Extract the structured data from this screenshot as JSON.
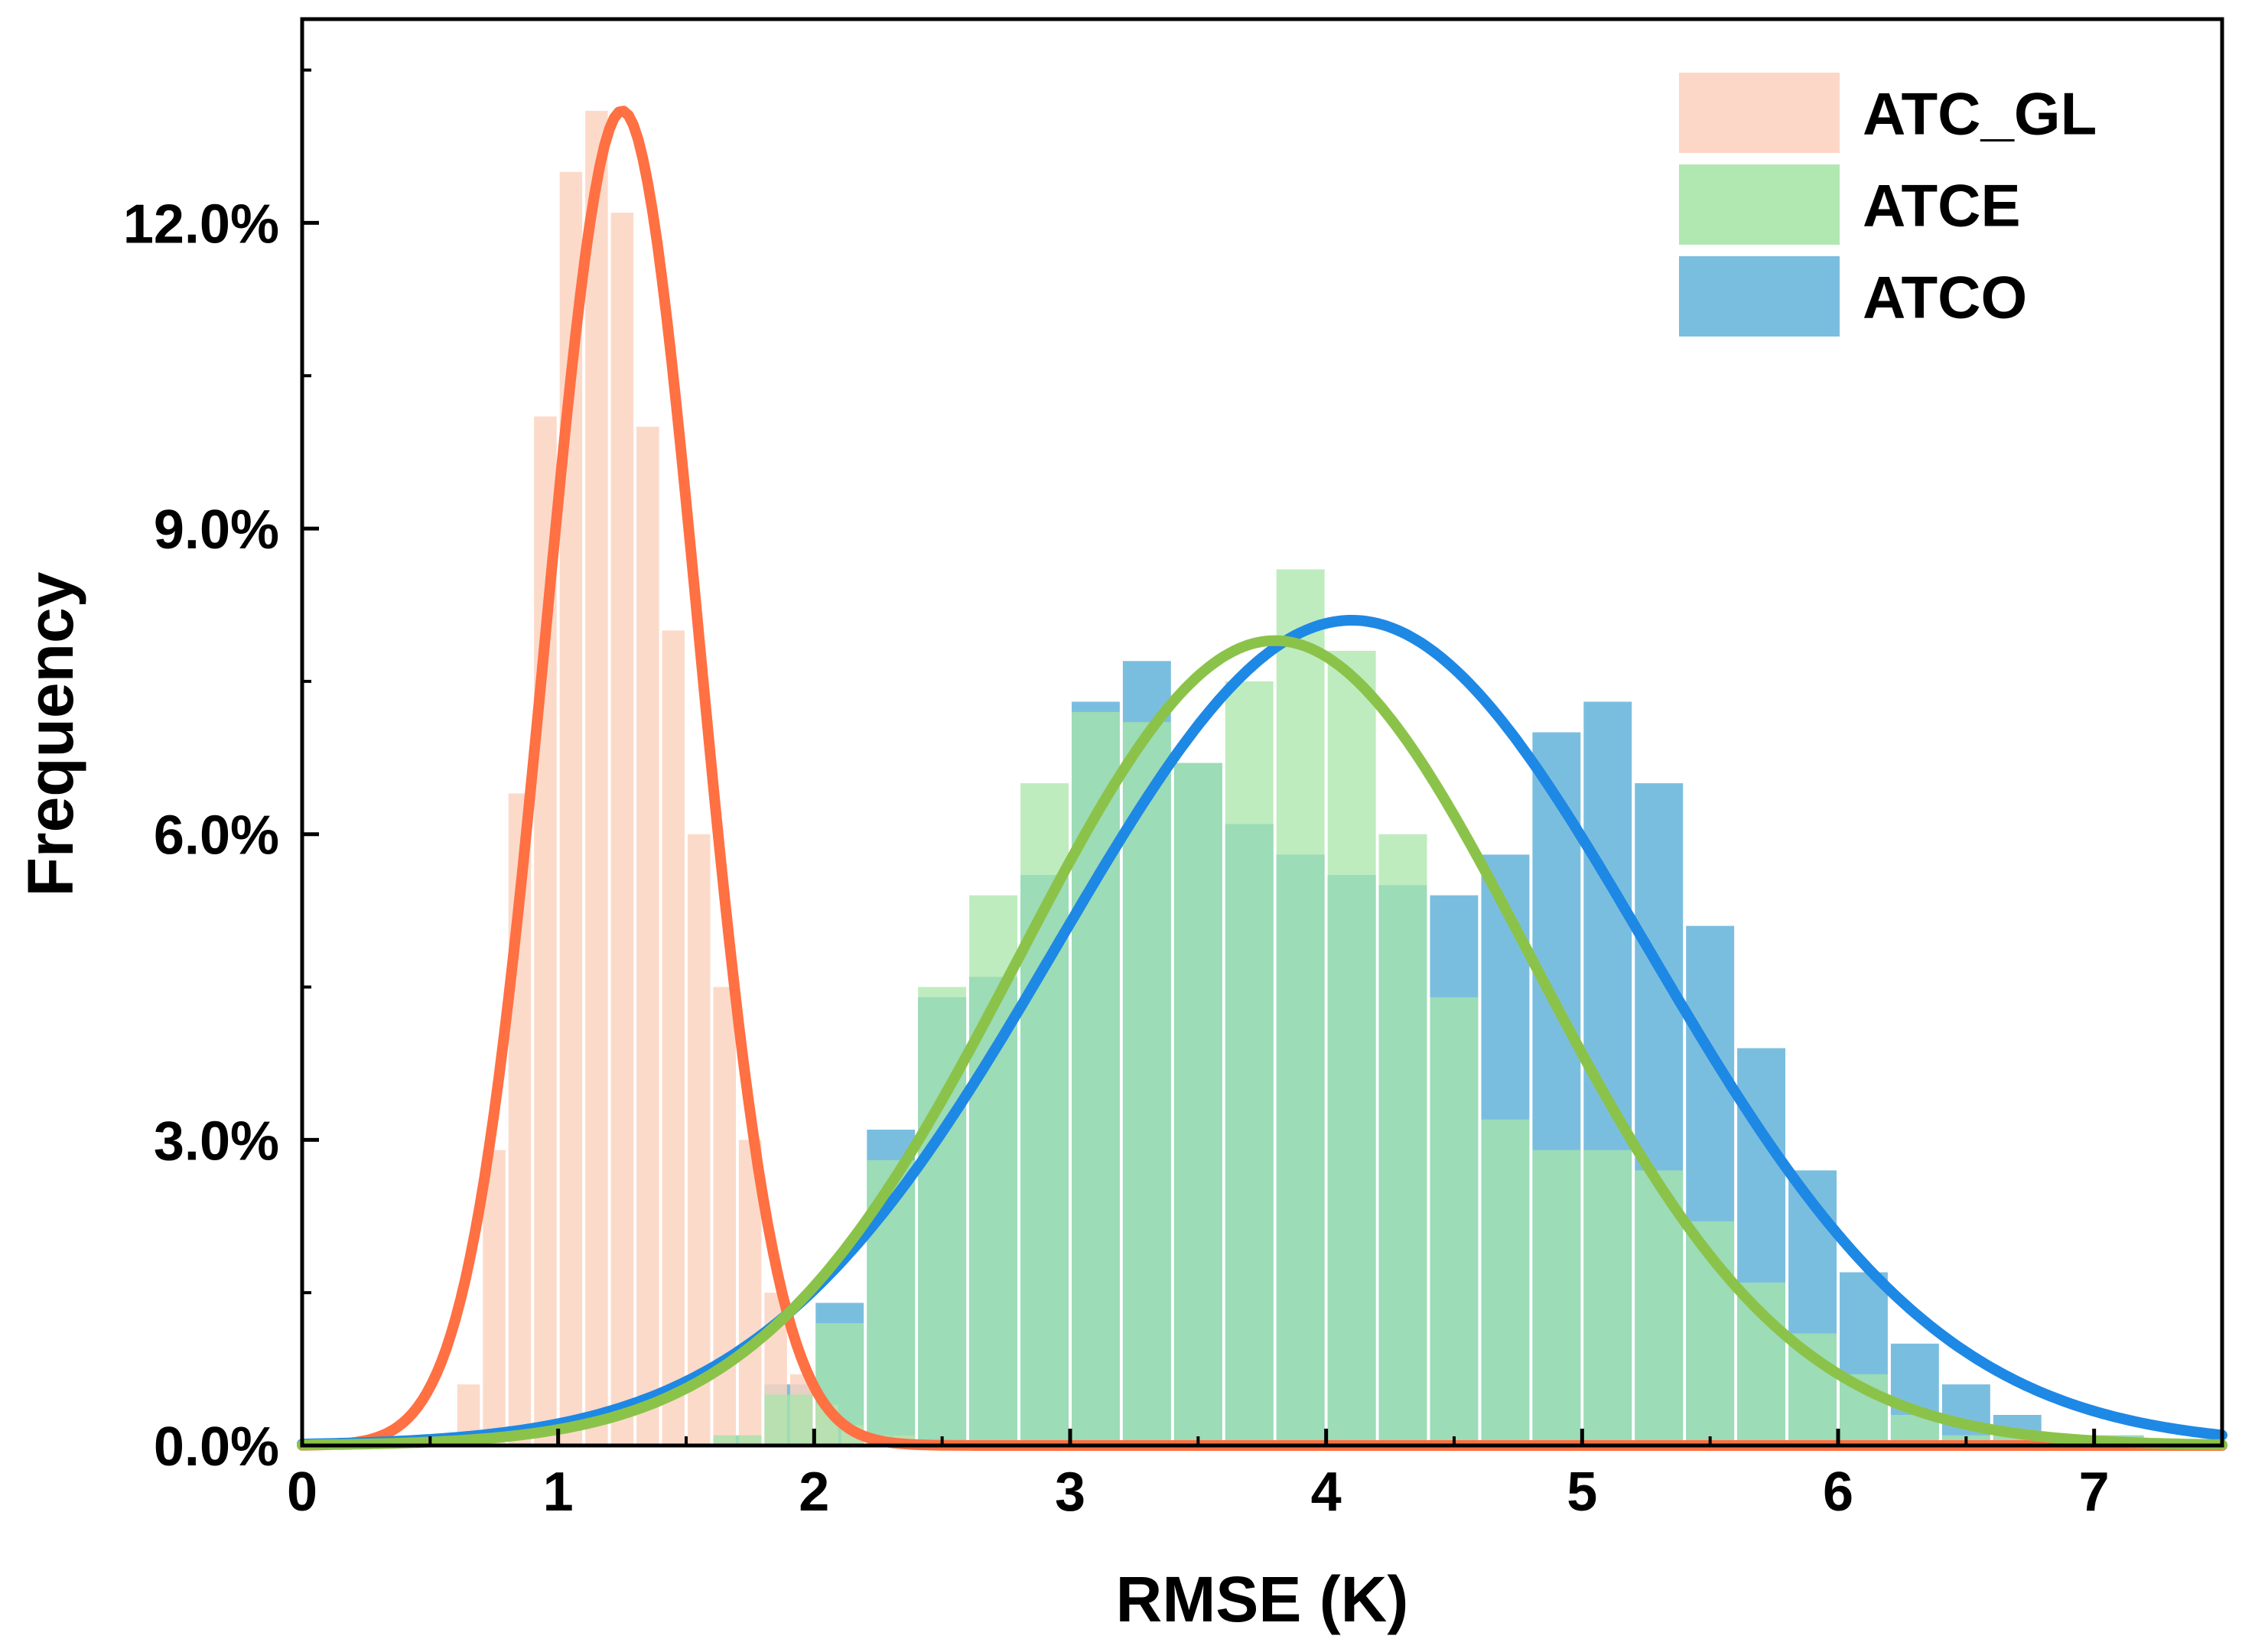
{
  "chart_data": {
    "type": "bar",
    "title": "",
    "xlabel": "RMSE (K)",
    "ylabel": "Frequency",
    "xlim": [
      0,
      7.5
    ],
    "ylim": [
      0,
      0.14
    ],
    "xticks": [
      0,
      1,
      2,
      3,
      4,
      5,
      6,
      7
    ],
    "xtick_labels": [
      "0",
      "1",
      "2",
      "3",
      "4",
      "5",
      "6",
      "7"
    ],
    "yticks": [
      0,
      0.03,
      0.06,
      0.09,
      0.12
    ],
    "ytick_labels": [
      "0.0%",
      "3.0%",
      "6.0%",
      "9.0%",
      "12.0%"
    ],
    "grid": false,
    "legend_position": "top-right",
    "bin_width": 0.2,
    "series": [
      {
        "name": "ATC_GL",
        "bar_color": "#fcd3c1",
        "fit_color": "#ff7043",
        "bin_starts": [
          0.6,
          0.7,
          0.8,
          0.9,
          1.0,
          1.1,
          1.2,
          1.3,
          1.4,
          1.5,
          1.6,
          1.7,
          1.8,
          1.9,
          2.0,
          2.1,
          2.2,
          2.3
        ],
        "bin_width": 0.1,
        "values": [
          0.006,
          0.029,
          0.064,
          0.101,
          0.125,
          0.131,
          0.121,
          0.1,
          0.08,
          0.06,
          0.045,
          0.03,
          0.015,
          0.007,
          0.004,
          0.002,
          0.001,
          0.001
        ],
        "fit": {
          "mean": 1.25,
          "sd": 0.3,
          "peak": 0.131
        }
      },
      {
        "name": "ATCE",
        "bar_color": "#a8e6a8",
        "fit_color": "#8bc34a",
        "bin_starts": [
          1.6,
          1.8,
          2.0,
          2.2,
          2.4,
          2.6,
          2.8,
          3.0,
          3.2,
          3.4,
          3.6,
          3.8,
          4.0,
          4.2,
          4.4,
          4.6,
          4.8,
          5.0,
          5.2,
          5.4,
          5.6,
          5.8,
          6.0,
          6.2,
          6.4,
          6.6,
          6.8,
          7.0
        ],
        "values": [
          0.001,
          0.005,
          0.012,
          0.028,
          0.045,
          0.054,
          0.065,
          0.072,
          0.071,
          0.067,
          0.075,
          0.086,
          0.078,
          0.06,
          0.044,
          0.032,
          0.029,
          0.029,
          0.027,
          0.022,
          0.016,
          0.011,
          0.007,
          0.003,
          0.001,
          0.001,
          0.001,
          0.001
        ],
        "fit": {
          "mean": 3.8,
          "sd": 1.0,
          "peak": 0.079
        }
      },
      {
        "name": "ATCO",
        "bar_color": "#6bb7dc",
        "fit_color": "#1e88e5",
        "bin_starts": [
          1.6,
          1.8,
          2.0,
          2.2,
          2.4,
          2.6,
          2.8,
          3.0,
          3.2,
          3.4,
          3.6,
          3.8,
          4.0,
          4.2,
          4.4,
          4.6,
          4.8,
          5.0,
          5.2,
          5.4,
          5.6,
          5.8,
          6.0,
          6.2,
          6.4,
          6.6,
          6.8,
          7.0
        ],
        "values": [
          0.001,
          0.006,
          0.014,
          0.031,
          0.044,
          0.046,
          0.056,
          0.073,
          0.077,
          0.067,
          0.061,
          0.058,
          0.056,
          0.055,
          0.054,
          0.058,
          0.07,
          0.073,
          0.065,
          0.051,
          0.039,
          0.027,
          0.017,
          0.01,
          0.006,
          0.003,
          0.001,
          0.001
        ],
        "fit": {
          "mean": 4.1,
          "sd": 1.15,
          "peak": 0.081
        }
      }
    ]
  }
}
